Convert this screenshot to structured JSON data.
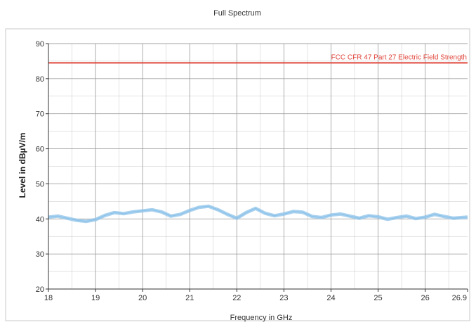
{
  "chart_data": {
    "type": "line",
    "title": "Full Spectrum",
    "xlabel": "Frequency in GHz",
    "ylabel": "Level in dBµV/m",
    "xlim": [
      18,
      26.9
    ],
    "ylim": [
      20,
      90
    ],
    "x_ticks": [
      18,
      19,
      20,
      21,
      22,
      23,
      24,
      25,
      26,
      26.9
    ],
    "x_tick_labels": [
      "18",
      "19",
      "20",
      "21",
      "22",
      "23",
      "24",
      "25",
      "26",
      "26.9"
    ],
    "y_ticks": [
      20,
      30,
      40,
      50,
      60,
      70,
      80,
      90
    ],
    "y_tick_labels": [
      "20",
      "30",
      "40",
      "50",
      "60",
      "70",
      "80",
      "90"
    ],
    "grid": true,
    "colors": {
      "measurement": "#8ec3ea",
      "limit": "#e0443a",
      "grid": "#9a9a9a",
      "axis": "#333333"
    },
    "series": [
      {
        "role": "measurement",
        "x": [
          18.0,
          18.2,
          18.4,
          18.6,
          18.8,
          19.0,
          19.2,
          19.4,
          19.6,
          19.8,
          20.0,
          20.2,
          20.4,
          20.6,
          20.8,
          21.0,
          21.2,
          21.4,
          21.6,
          21.8,
          22.0,
          22.2,
          22.4,
          22.6,
          22.8,
          23.0,
          23.2,
          23.4,
          23.6,
          23.8,
          24.0,
          24.2,
          24.4,
          24.6,
          24.8,
          25.0,
          25.2,
          25.4,
          25.6,
          25.8,
          26.0,
          26.2,
          26.4,
          26.6,
          26.9
        ],
        "values": [
          40.5,
          40.8,
          40.2,
          39.6,
          39.3,
          39.8,
          41.0,
          41.8,
          41.5,
          42.0,
          42.3,
          42.6,
          42.0,
          40.8,
          41.3,
          42.4,
          43.3,
          43.6,
          42.6,
          41.3,
          40.2,
          41.8,
          43.0,
          41.6,
          40.9,
          41.4,
          42.1,
          41.9,
          40.7,
          40.4,
          41.1,
          41.4,
          40.8,
          40.2,
          40.9,
          40.6,
          39.9,
          40.4,
          40.8,
          40.1,
          40.5,
          41.3,
          40.7,
          40.2,
          40.5
        ]
      },
      {
        "role": "limit",
        "name": "FCC CFR 47 Part 27 Electric Field Strength",
        "x": [
          18,
          26.9
        ],
        "values": [
          84.5,
          84.5
        ]
      }
    ]
  }
}
